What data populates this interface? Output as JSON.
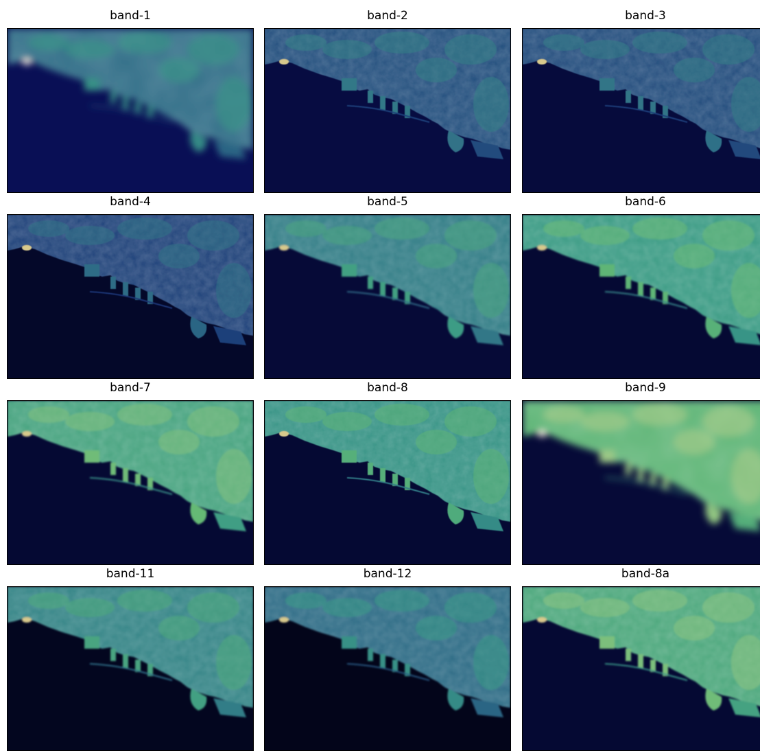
{
  "figure": {
    "colormap_colors": [
      "#03051a",
      "#0a1160",
      "#1f3f7a",
      "#2f6f87",
      "#3a9a86",
      "#62b874",
      "#b2cf8c",
      "#f2e6c8"
    ],
    "panels": [
      {
        "title": "band-1",
        "land_level": 0.42,
        "water_level": 0.12,
        "blur": 5.0,
        "hotspot": true
      },
      {
        "title": "band-2",
        "land_level": 0.34,
        "water_level": 0.08,
        "blur": 0.6,
        "hotspot": false
      },
      {
        "title": "band-3",
        "land_level": 0.33,
        "water_level": 0.07,
        "blur": 0.6,
        "hotspot": false
      },
      {
        "title": "band-4",
        "land_level": 0.3,
        "water_level": 0.03,
        "blur": 0.6,
        "hotspot": false
      },
      {
        "title": "band-5",
        "land_level": 0.48,
        "water_level": 0.06,
        "blur": 1.2,
        "hotspot": false
      },
      {
        "title": "band-6",
        "land_level": 0.58,
        "water_level": 0.05,
        "blur": 1.2,
        "hotspot": false
      },
      {
        "title": "band-7",
        "land_level": 0.62,
        "water_level": 0.05,
        "blur": 1.2,
        "hotspot": false
      },
      {
        "title": "band-8",
        "land_level": 0.55,
        "water_level": 0.05,
        "blur": 0.6,
        "hotspot": false
      },
      {
        "title": "band-9",
        "land_level": 0.7,
        "water_level": 0.06,
        "blur": 5.0,
        "hotspot": true
      },
      {
        "title": "band-11",
        "land_level": 0.5,
        "water_level": 0.01,
        "blur": 1.2,
        "hotspot": false
      },
      {
        "title": "band-12",
        "land_level": 0.42,
        "water_level": 0.0,
        "blur": 1.2,
        "hotspot": false
      },
      {
        "title": "band-8a",
        "land_level": 0.64,
        "water_level": 0.05,
        "blur": 1.2,
        "hotspot": false
      }
    ]
  }
}
